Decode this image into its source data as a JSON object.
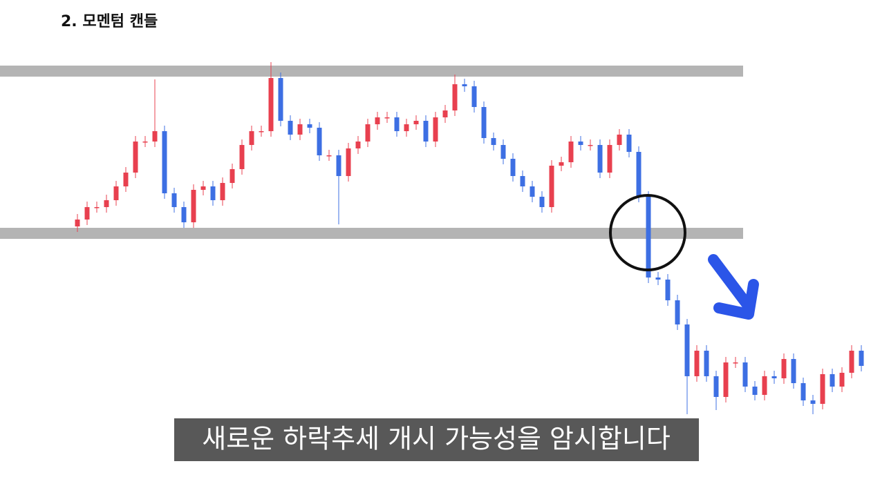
{
  "chart_data": {
    "type": "candlestick",
    "title": "2. 모멘텀 캔들",
    "caption": "새로운 하락추세 개시 가능성을 암시합니다",
    "ylim": [
      0,
      704
    ],
    "up_color": "#e8404f",
    "down_color": "#3d6fe3",
    "levels": [
      601,
      366
    ],
    "level_color": "#b4b4b4",
    "open": [
      376,
      386,
      404,
      404,
      414,
      434,
      454,
      499,
      499,
      514,
      424,
      404,
      382,
      429,
      434,
      414,
      439,
      459,
      494,
      514,
      514,
      591,
      529,
      509,
      524,
      519,
      479,
      479,
      449,
      489,
      499,
      524,
      534,
      534,
      514,
      524,
      529,
      499,
      534,
      544,
      582,
      579,
      549,
      504,
      494,
      474,
      449,
      434,
      419,
      404,
      464,
      469,
      499,
      494,
      494,
      454,
      494,
      509,
      484,
      419,
      302,
      299,
      269,
      234,
      159,
      196,
      159,
      129,
      179,
      179,
      144,
      132,
      159,
      156,
      184,
      149,
      124,
      119,
      162,
      144,
      164,
      196
    ],
    "high": [
      394,
      412,
      412,
      422,
      442,
      462,
      507,
      507,
      589,
      522,
      432,
      412,
      437,
      442,
      442,
      447,
      467,
      502,
      522,
      522,
      614,
      599,
      537,
      532,
      532,
      527,
      487,
      487,
      497,
      507,
      532,
      542,
      542,
      542,
      532,
      537,
      537,
      542,
      552,
      596,
      590,
      587,
      557,
      512,
      502,
      482,
      457,
      442,
      427,
      472,
      477,
      507,
      507,
      502,
      502,
      502,
      517,
      517,
      492,
      427,
      310,
      307,
      277,
      242,
      204,
      204,
      167,
      187,
      187,
      187,
      152,
      167,
      167,
      192,
      192,
      157,
      132,
      170,
      170,
      172,
      204,
      204
    ],
    "low": [
      368,
      378,
      396,
      396,
      406,
      426,
      446,
      491,
      491,
      416,
      396,
      374,
      374,
      421,
      406,
      406,
      431,
      451,
      486,
      506,
      506,
      521,
      501,
      501,
      511,
      471,
      471,
      379,
      441,
      481,
      491,
      516,
      526,
      506,
      506,
      516,
      491,
      491,
      526,
      536,
      571,
      541,
      496,
      486,
      466,
      441,
      426,
      411,
      396,
      396,
      456,
      461,
      486,
      486,
      446,
      446,
      486,
      476,
      411,
      294,
      291,
      261,
      226,
      104,
      151,
      151,
      110,
      121,
      171,
      136,
      124,
      124,
      148,
      148,
      141,
      116,
      104,
      111,
      136,
      136,
      156,
      166
    ],
    "close": [
      386,
      404,
      404,
      414,
      434,
      454,
      499,
      499,
      514,
      424,
      404,
      382,
      429,
      434,
      414,
      439,
      459,
      494,
      514,
      514,
      591,
      529,
      509,
      524,
      519,
      479,
      479,
      449,
      489,
      499,
      524,
      534,
      534,
      514,
      524,
      529,
      499,
      534,
      544,
      582,
      579,
      549,
      504,
      494,
      474,
      449,
      434,
      419,
      404,
      464,
      469,
      499,
      494,
      494,
      454,
      494,
      509,
      484,
      419,
      302,
      299,
      269,
      234,
      159,
      196,
      159,
      129,
      179,
      179,
      144,
      132,
      159,
      156,
      184,
      149,
      124,
      119,
      162,
      144,
      164,
      196,
      174
    ]
  }
}
